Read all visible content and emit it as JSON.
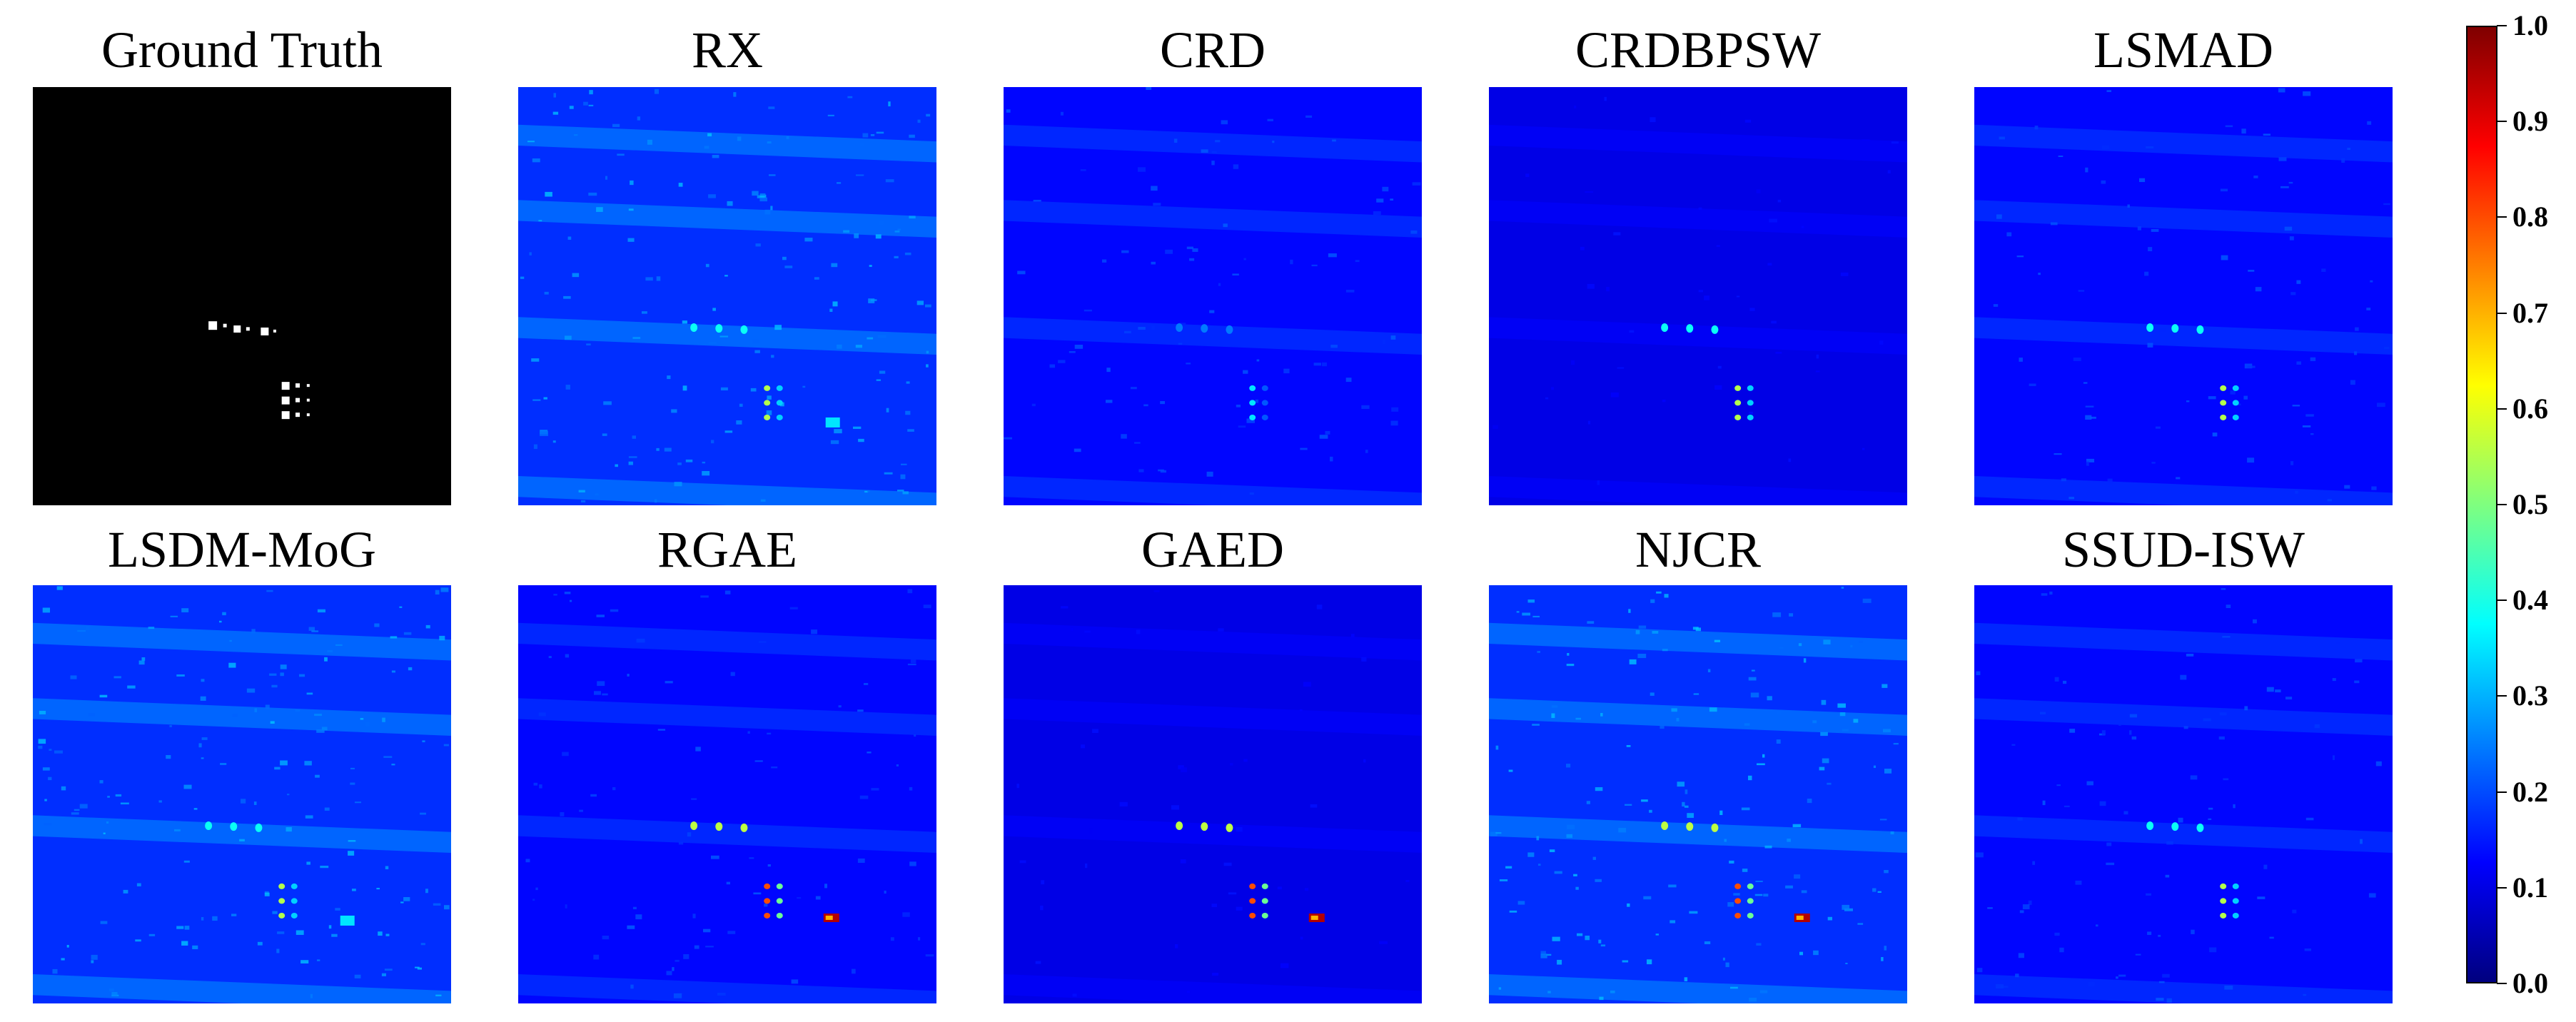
{
  "panels": [
    {
      "id": "gt",
      "title": "Ground Truth",
      "kind": "ground_truth"
    },
    {
      "id": "rx",
      "title": "RX",
      "kind": "heatmap",
      "target_level": "medium",
      "background_noise": "high"
    },
    {
      "id": "crd",
      "title": "CRD",
      "kind": "heatmap",
      "target_level": "low",
      "background_noise": "medium"
    },
    {
      "id": "crdbpsw",
      "title": "CRDBPSW",
      "kind": "heatmap",
      "target_level": "medium",
      "background_noise": "low"
    },
    {
      "id": "lsmad",
      "title": "LSMAD",
      "kind": "heatmap",
      "target_level": "medium",
      "background_noise": "medium"
    },
    {
      "id": "lsdm-mog",
      "title": "LSDM-MoG",
      "kind": "heatmap",
      "target_level": "medium",
      "background_noise": "high"
    },
    {
      "id": "rgae",
      "title": "RGAE",
      "kind": "heatmap",
      "target_level": "high",
      "background_noise": "medium"
    },
    {
      "id": "gaed",
      "title": "GAED",
      "kind": "heatmap",
      "target_level": "high",
      "background_noise": "low"
    },
    {
      "id": "njcr",
      "title": "NJCR",
      "kind": "heatmap",
      "target_level": "high",
      "background_noise": "high"
    },
    {
      "id": "ssud-isw",
      "title": "SSUD-ISW",
      "kind": "heatmap",
      "target_level": "medium",
      "background_noise": "medium"
    }
  ],
  "colorbar": {
    "colormap": "jet",
    "min": 0.0,
    "max": 1.0,
    "ticks": [
      "1.0",
      "0.9",
      "0.8",
      "0.7",
      "0.6",
      "0.5",
      "0.4",
      "0.3",
      "0.2",
      "0.1",
      "0.0"
    ],
    "colors": [
      "#7f0000",
      "#ff0000",
      "#ff7f00",
      "#ffff00",
      "#7fff7f",
      "#00ffff",
      "#007fff",
      "#0000ff",
      "#00007f"
    ]
  }
}
